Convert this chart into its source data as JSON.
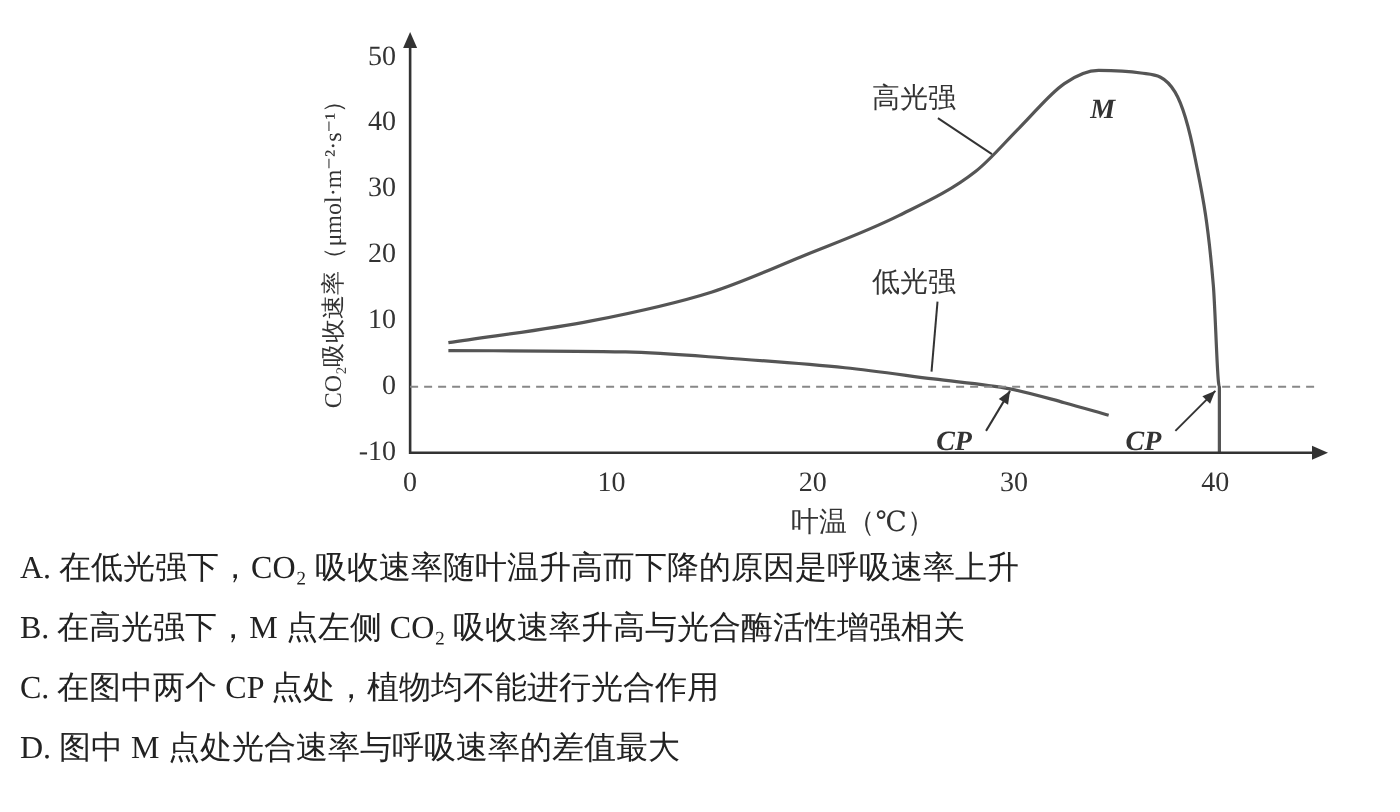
{
  "chart_data": {
    "type": "line",
    "xlabel": "叶温（℃）",
    "ylabel": "CO₂吸收速率（μmol·m⁻²·s⁻¹）",
    "xlim": [
      0,
      45
    ],
    "xticks": [
      0,
      10,
      20,
      30,
      40
    ],
    "ylim": [
      -10,
      52
    ],
    "yticks": [
      -10,
      0,
      10,
      20,
      30,
      40,
      50
    ],
    "grid": false,
    "legend": false,
    "marker": "none",
    "line_style": "solid",
    "series": [
      {
        "color": "#555555",
        "x": [
          1.9,
          9,
          15,
          19.4,
          24.3,
          28.1,
          30.3,
          32.5,
          34.2,
          36.3,
          38,
          39,
          39.9,
          40.2,
          40.2
        ],
        "values": [
          6.7,
          10,
          14.4,
          19.7,
          26,
          32.7,
          39.4,
          46,
          48,
          47.6,
          44.7,
          34.6,
          15.4,
          0,
          -10
        ]
      },
      {
        "color": "#555555",
        "x": [
          1.9,
          10.7,
          16,
          21.6,
          26,
          29.8,
          32.5,
          34.7
        ],
        "values": [
          5.5,
          5.3,
          4.3,
          2.9,
          1.2,
          -0.3,
          -2.4,
          -4.3
        ]
      }
    ],
    "ref_lines": [
      {
        "axis": "y",
        "value": 0,
        "color": "#888888",
        "line_style": "dashed"
      }
    ],
    "annotations": [
      {
        "text": "高光强",
        "x": 29,
        "y": 35
      },
      {
        "text": "M",
        "x": 34.2,
        "y": 48
      },
      {
        "text": "低光强",
        "x": 26,
        "y": 2
      },
      {
        "text": "CP",
        "x": 30,
        "y": 0
      },
      {
        "text": "CP",
        "x": 40.2,
        "y": 0
      },
      "A. 在低光强下，CO₂ 吸收速率随叶温升高而下降的原因是呼吸速率上升",
      "B. 在高光强下，M 点左侧 CO₂ 吸收速率升高与光合酶活性增强相关",
      "C. 在图中两个 CP 点处，植物均不能进行光合作用",
      "D. 图中 M 点处光合速率与呼吸速率的差值最大"
    ]
  }
}
